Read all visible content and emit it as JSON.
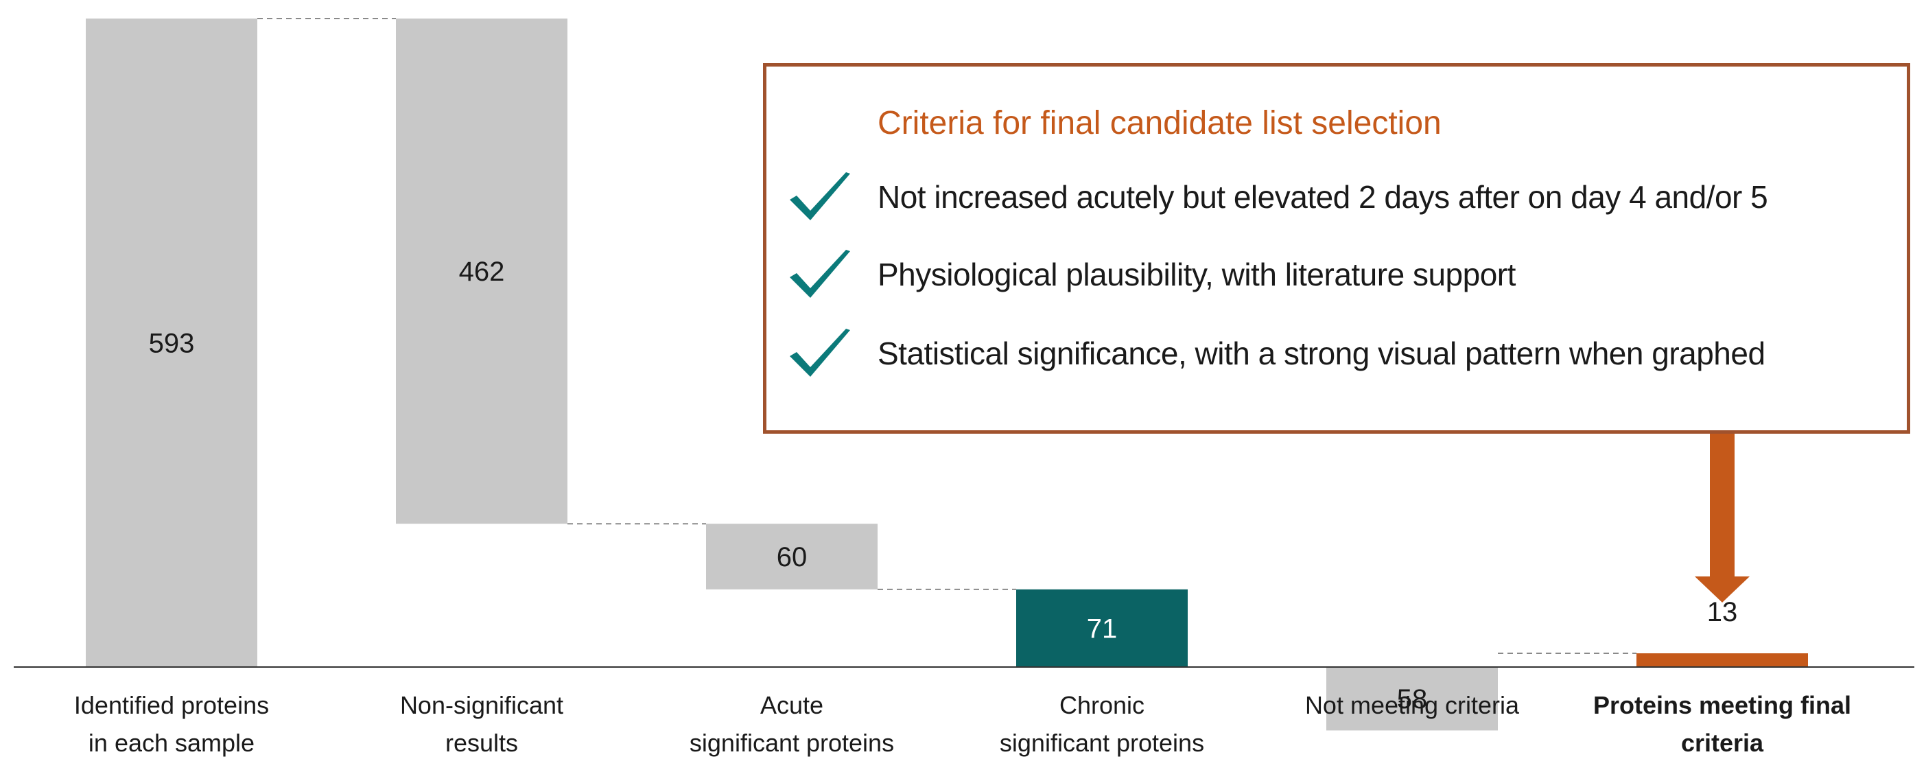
{
  "chart_data": {
    "type": "waterfall",
    "categories": [
      [
        "Identified proteins",
        "in each sample"
      ],
      [
        "Non-significant",
        "results"
      ],
      [
        "Acute",
        "significant proteins"
      ],
      [
        "Chronic",
        "significant proteins"
      ],
      [
        "Not meeting criteria"
      ],
      [
        "Proteins meeting final",
        "criteria"
      ]
    ],
    "values": [
      593,
      462,
      60,
      71,
      58,
      13
    ],
    "data_labels": [
      "593",
      "462",
      "60",
      "71",
      "58",
      "13"
    ],
    "bar_roles": [
      "total",
      "decrease",
      "decrease",
      "highlight",
      "decrease",
      "final"
    ],
    "colors": {
      "total": "#c8c8c8",
      "decrease": "#c8c8c8",
      "highlight": "#0b6364",
      "final": "#c5591a",
      "box_border": "#a0522d",
      "title": "#c5591a",
      "check": "#0b7a7a",
      "connector": "#8a8a8a",
      "baseline": "#333333"
    },
    "ylim": [
      0,
      593
    ],
    "grid": false,
    "legend": "none"
  },
  "criteria_box": {
    "title": "Criteria for final candidate list selection",
    "items": [
      {
        "icon": "check-icon",
        "text": "Not increased acutely but elevated 2 days after on day 4 and/or 5"
      },
      {
        "icon": "check-icon",
        "text": "Physiological plausibility, with literature support"
      },
      {
        "icon": "check-icon",
        "text": "Statistical significance, with a strong visual pattern when graphed"
      }
    ]
  }
}
